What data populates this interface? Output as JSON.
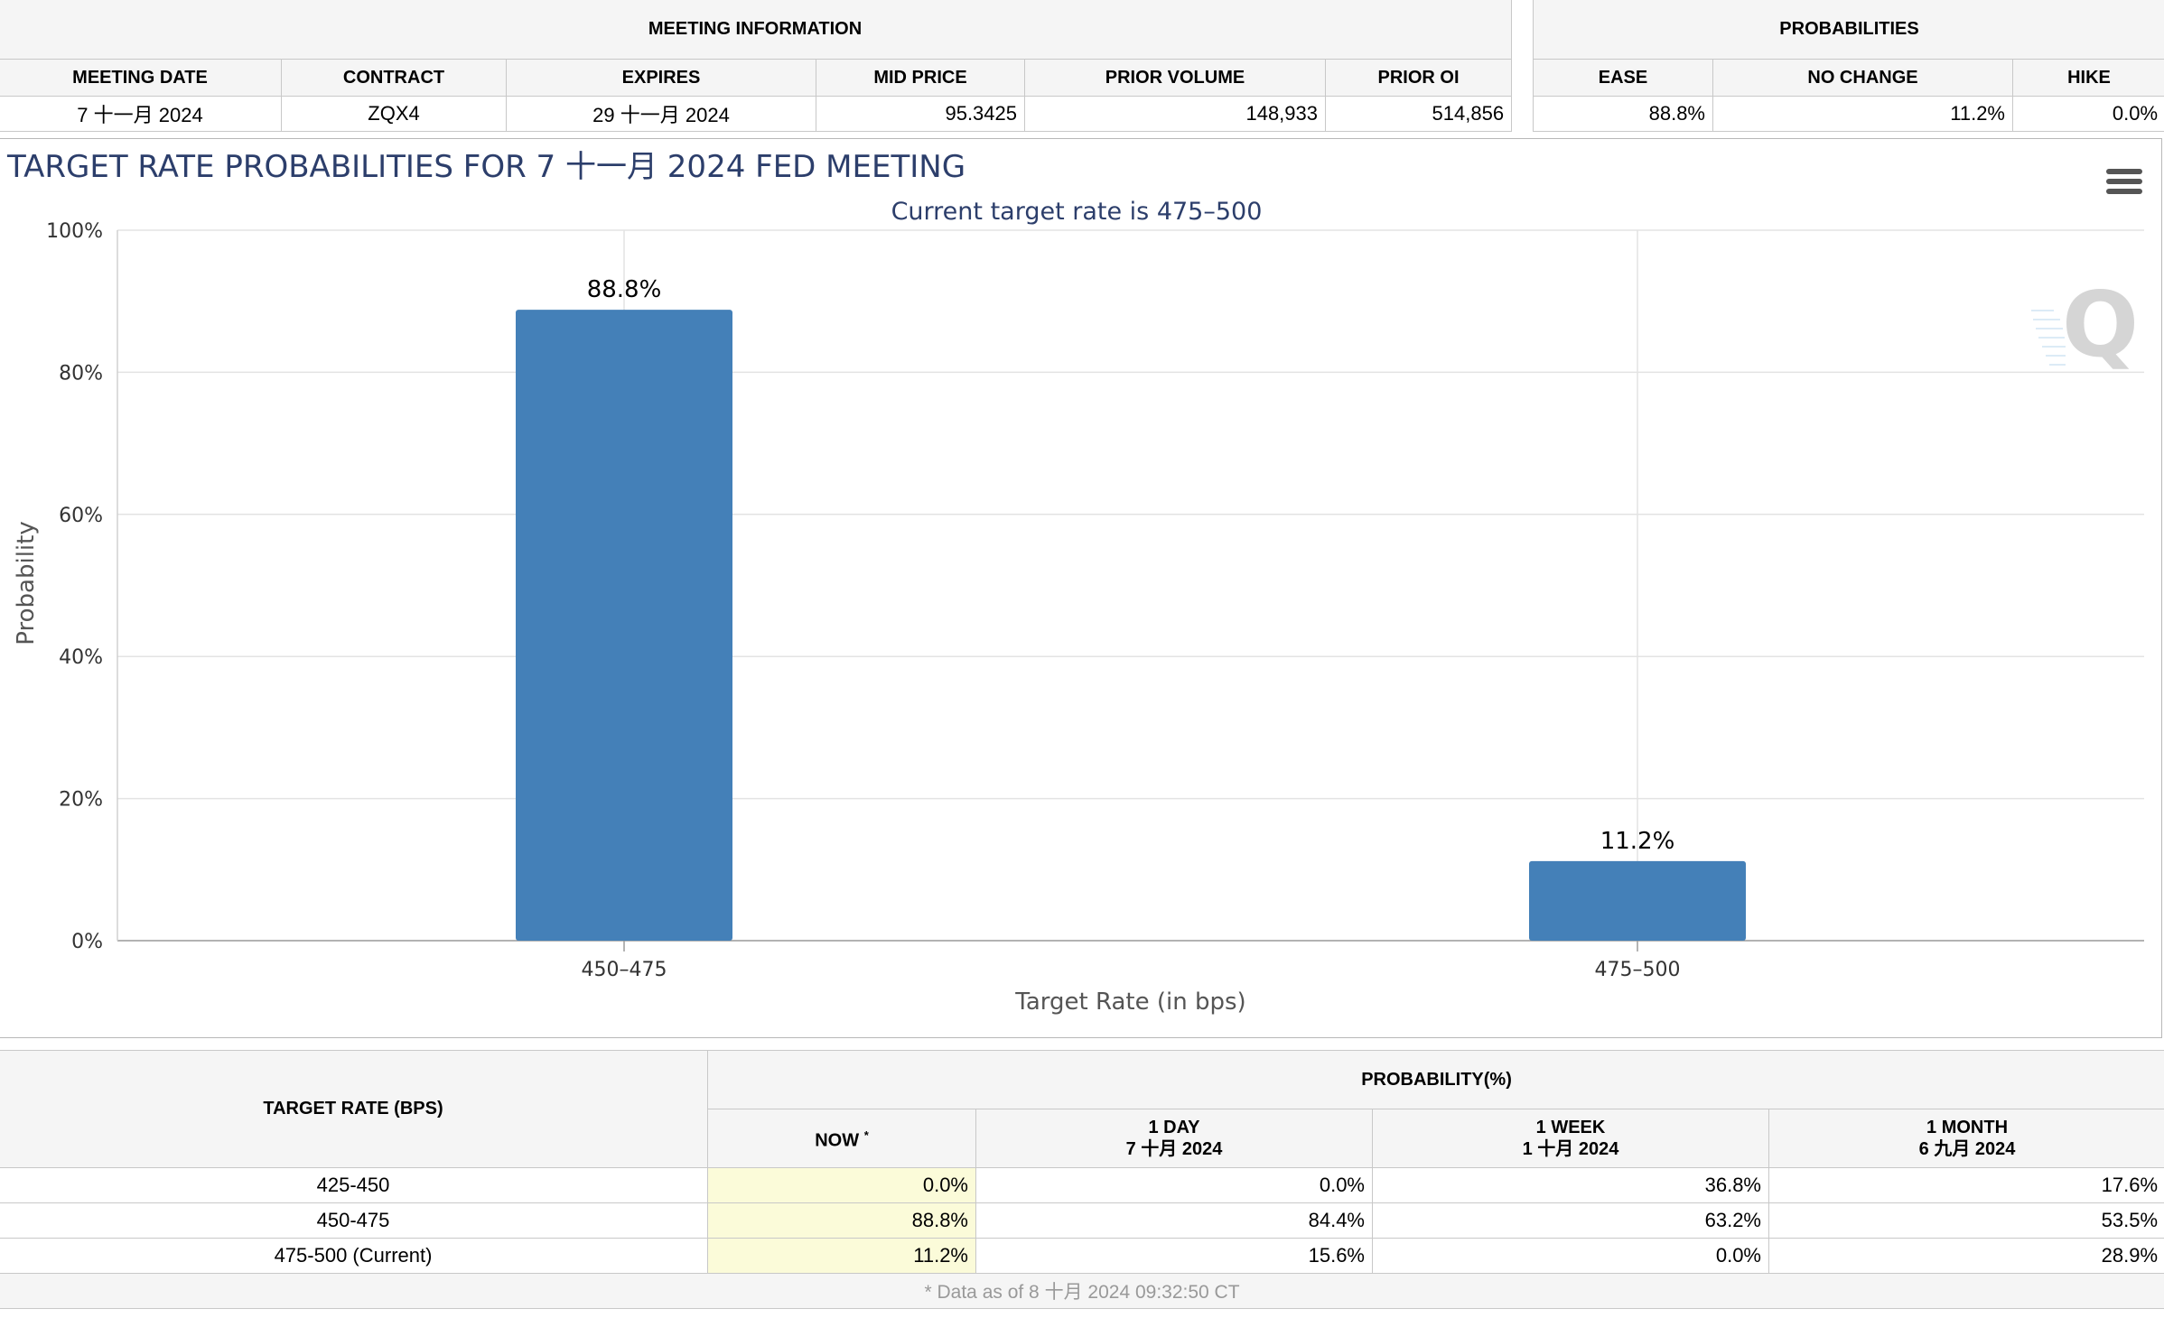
{
  "meeting_info": {
    "title": "MEETING INFORMATION",
    "headers": [
      "MEETING DATE",
      "CONTRACT",
      "EXPIRES",
      "MID PRICE",
      "PRIOR VOLUME",
      "PRIOR OI"
    ],
    "row": [
      "7 十一月 2024",
      "ZQX4",
      "29 十一月 2024",
      "95.3425",
      "148,933",
      "514,856"
    ]
  },
  "probabilities": {
    "title": "PROBABILITIES",
    "headers": [
      "EASE",
      "NO CHANGE",
      "HIKE"
    ],
    "row": [
      "88.8%",
      "11.2%",
      "0.0%"
    ]
  },
  "chart_data": {
    "type": "bar",
    "title": "TARGET RATE PROBABILITIES FOR 7 十一月 2024 FED MEETING",
    "subtitle": "Current target rate is 475–500",
    "xlabel": "Target Rate (in bps)",
    "ylabel": "Probability",
    "categories": [
      "450–475",
      "475–500"
    ],
    "values": [
      88.8,
      11.2
    ],
    "data_labels": [
      "88.8%",
      "11.2%"
    ],
    "ylim": [
      0,
      100
    ],
    "yticks": [
      "0%",
      "20%",
      "40%",
      "60%",
      "80%",
      "100%"
    ],
    "ytick_values": [
      0,
      20,
      40,
      60,
      80,
      100
    ],
    "bar_color": "#4480b8",
    "grid": true,
    "legend": "none"
  },
  "bottom_table": {
    "target_rate_header": "TARGET RATE (BPS)",
    "probability_header": "PROBABILITY(%)",
    "now_header": "NOW",
    "now_mark": "*",
    "periods": [
      {
        "label": "1 DAY",
        "date": "7 十月 2024"
      },
      {
        "label": "1 WEEK",
        "date": "1 十月 2024"
      },
      {
        "label": "1 MONTH",
        "date": "6 九月 2024"
      }
    ],
    "rows": [
      {
        "rate": "425-450",
        "now": "0.0%",
        "day": "0.0%",
        "week": "36.8%",
        "month": "17.6%"
      },
      {
        "rate": "450-475",
        "now": "88.8%",
        "day": "84.4%",
        "week": "63.2%",
        "month": "53.5%"
      },
      {
        "rate": "475-500 (Current)",
        "now": "11.2%",
        "day": "15.6%",
        "week": "0.0%",
        "month": "28.9%"
      }
    ],
    "footnote": "* Data as of 8 十月 2024 09:32:50 CT"
  },
  "colors": {
    "accent": "#4480b8",
    "title_text": "#2c3e6b",
    "now_highlight": "#fbfbd9"
  },
  "icons": {
    "menu": "hamburger-menu-icon",
    "watermark": "q-logo-watermark"
  }
}
